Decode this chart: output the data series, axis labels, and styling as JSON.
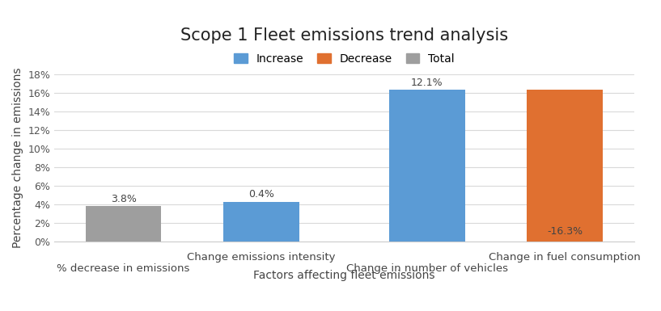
{
  "title": "Scope 1 Fleet emissions trend analysis",
  "xlabel": "Factors affecting fleet emissions",
  "ylabel": "Percentage change in emissions",
  "bars": [
    {
      "x": 0.0,
      "value": 3.8,
      "color": "#9e9e9e",
      "label": "3.8%",
      "label_pos": "top"
    },
    {
      "x": 1.0,
      "value": 4.3,
      "color": "#5b9bd5",
      "label": "0.4%",
      "label_pos": "top"
    },
    {
      "x": 2.2,
      "value": 16.3,
      "color": "#5b9bd5",
      "label": "12.1%",
      "label_pos": "top"
    },
    {
      "x": 3.2,
      "value": 16.3,
      "color": "#e07030",
      "label": "-16.3%",
      "label_pos": "bottom"
    }
  ],
  "bar_width": 0.55,
  "xtick_positions": [
    0.0,
    1.0,
    2.2,
    3.2
  ],
  "xtick_labels_row1": [
    "% decrease in emissions",
    "Change emissions intensity",
    "Change in number of vehicles",
    "Change in fuel consumption"
  ],
  "xtick_labels_row2": [
    "",
    "",
    "",
    ""
  ],
  "ylim": [
    0,
    18
  ],
  "yticks": [
    0,
    2,
    4,
    6,
    8,
    10,
    12,
    14,
    16,
    18
  ],
  "ytick_labels": [
    "0%",
    "2%",
    "4%",
    "6%",
    "8%",
    "10%",
    "12%",
    "14%",
    "16%",
    "18%"
  ],
  "background_color": "#ffffff",
  "plot_bg_color": "#ffffff",
  "grid_color": "#d9d9d9",
  "legend": [
    {
      "label": "Increase",
      "color": "#5b9bd5"
    },
    {
      "label": "Decrease",
      "color": "#e07030"
    },
    {
      "label": "Total",
      "color": "#9e9e9e"
    }
  ],
  "title_fontsize": 15,
  "label_fontsize": 10,
  "tick_fontsize": 9,
  "annot_fontsize": 9
}
